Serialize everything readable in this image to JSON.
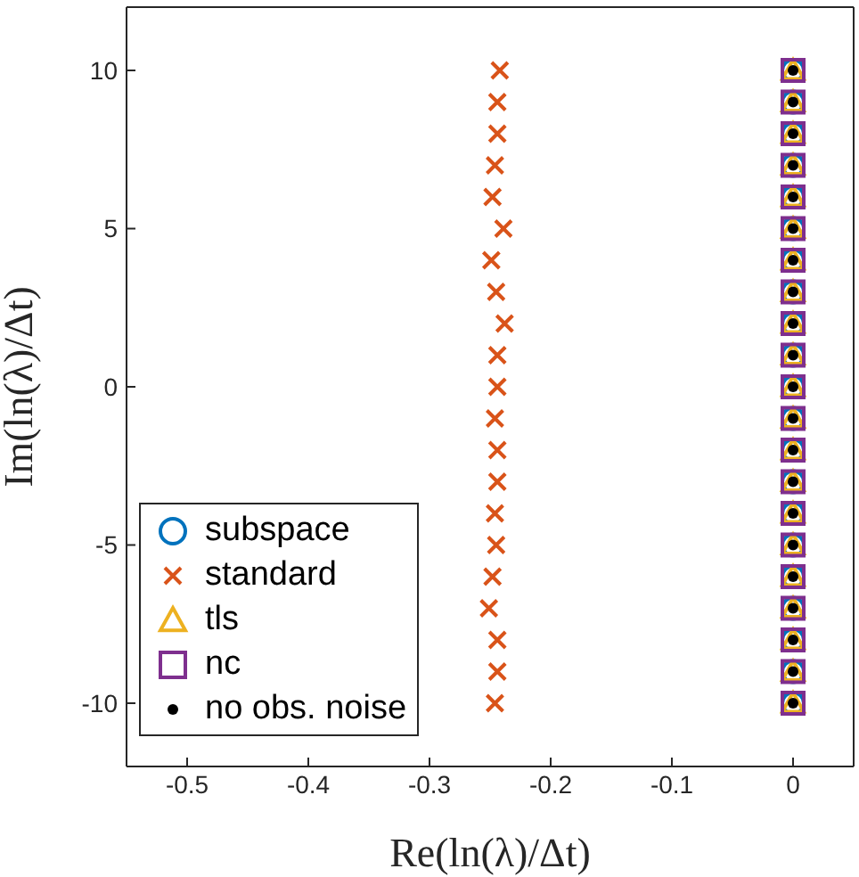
{
  "chart_data": {
    "type": "scatter",
    "xlabel": "Re(ln(λ)/Δt)",
    "ylabel": "Im(ln(λ)/Δt)",
    "xlim": [
      -0.55,
      0.05
    ],
    "ylim": [
      -12,
      12
    ],
    "xticks": [
      -0.5,
      -0.4,
      -0.3,
      -0.2,
      -0.1,
      0
    ],
    "yticks": [
      -10,
      -5,
      0,
      5,
      10
    ],
    "grid": false,
    "legend": "bottom left",
    "series": [
      {
        "name": "subspace",
        "color": "#0072bd",
        "marker": "circle",
        "x": [
          0,
          0,
          0,
          0,
          0,
          0,
          0,
          0,
          0,
          0,
          0,
          0,
          0,
          0,
          0,
          0,
          0,
          0,
          0,
          0,
          0
        ],
        "values": [
          10,
          9,
          8,
          7,
          6,
          5,
          4,
          3,
          2,
          1,
          0,
          -1,
          -2,
          -3,
          -4,
          -5,
          -6,
          -7,
          -8,
          -9,
          -10
        ]
      },
      {
        "name": "standard",
        "color": "#d95319",
        "marker": "cross",
        "x": [
          -0.242,
          -0.244,
          -0.244,
          -0.246,
          -0.248,
          -0.239,
          -0.249,
          -0.245,
          -0.238,
          -0.244,
          -0.244,
          -0.246,
          -0.244,
          -0.244,
          -0.246,
          -0.245,
          -0.248,
          -0.251,
          -0.244,
          -0.244,
          -0.246
        ],
        "values": [
          10,
          9,
          8,
          7,
          6,
          5,
          4,
          3,
          2,
          1,
          0,
          -1,
          -2,
          -3,
          -4,
          -5,
          -6,
          -7,
          -8,
          -9,
          -10
        ]
      },
      {
        "name": "tls",
        "color": "#edb120",
        "marker": "triangle",
        "x": [
          0,
          0,
          0,
          0,
          0,
          0,
          0,
          0,
          0,
          0,
          0,
          0,
          0,
          0,
          0,
          0,
          0,
          0,
          0,
          0,
          0
        ],
        "values": [
          10,
          9,
          8,
          7,
          6,
          5,
          4,
          3,
          2,
          1,
          0,
          -1,
          -2,
          -3,
          -4,
          -5,
          -6,
          -7,
          -8,
          -9,
          -10
        ]
      },
      {
        "name": "nc",
        "color": "#7e2f8e",
        "marker": "square",
        "x": [
          0,
          0,
          0,
          0,
          0,
          0,
          0,
          0,
          0,
          0,
          0,
          0,
          0,
          0,
          0,
          0,
          0,
          0,
          0,
          0,
          0
        ],
        "values": [
          10,
          9,
          8,
          7,
          6,
          5,
          4,
          3,
          2,
          1,
          0,
          -1,
          -2,
          -3,
          -4,
          -5,
          -6,
          -7,
          -8,
          -9,
          -10
        ]
      },
      {
        "name": "no obs. noise",
        "color": "#000000",
        "marker": "dot",
        "x": [
          0,
          0,
          0,
          0,
          0,
          0,
          0,
          0,
          0,
          0,
          0,
          0,
          0,
          0,
          0,
          0,
          0,
          0,
          0,
          0,
          0
        ],
        "values": [
          10,
          9,
          8,
          7,
          6,
          5,
          4,
          3,
          2,
          1,
          0,
          -1,
          -2,
          -3,
          -4,
          -5,
          -6,
          -7,
          -8,
          -9,
          -10
        ]
      }
    ]
  }
}
